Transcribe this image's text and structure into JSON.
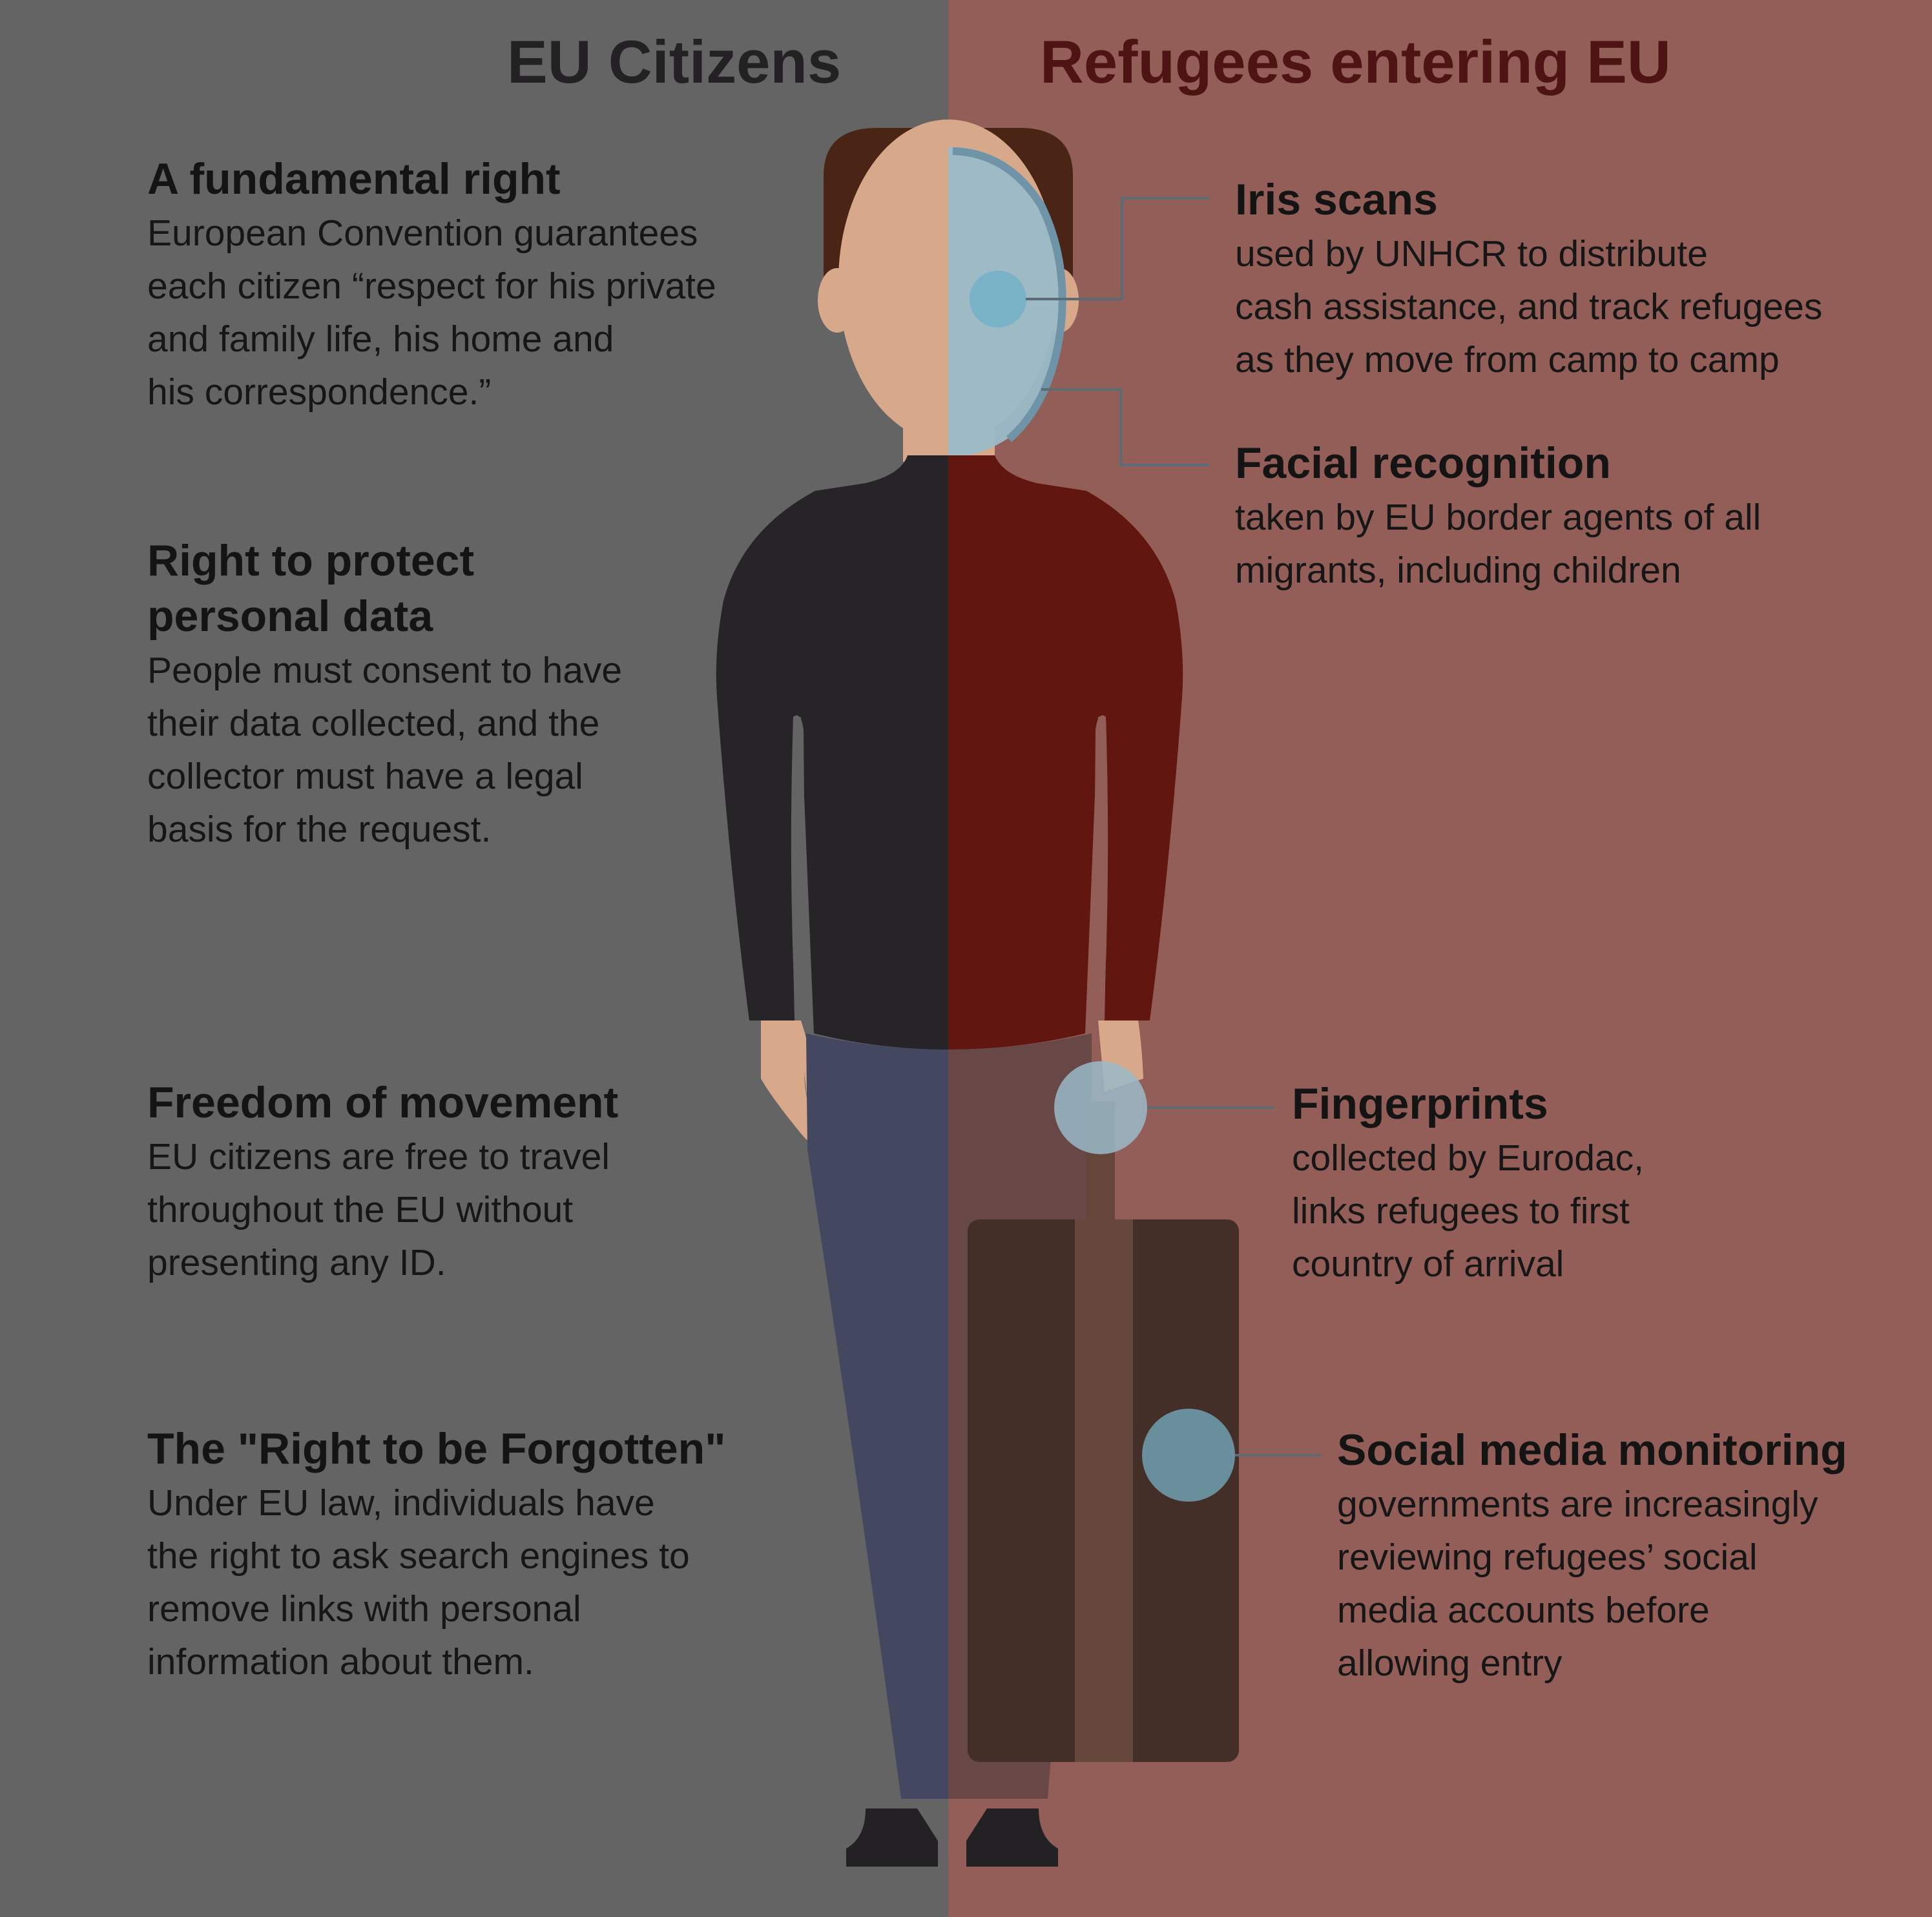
{
  "colors": {
    "left_bg": "#656465",
    "right_bg": "#925e57",
    "left_header": "#232123",
    "right_header": "#4e1413",
    "hair": "#4a2516",
    "skin": "#d7a98a",
    "scan_overlay": "#9abac8",
    "scan_dot": "#7ab2c8",
    "sweater_left": "#262426",
    "sweater_right": "#611610",
    "pants_left": "#444760",
    "pants_right": "#684846",
    "suitcase": "#432f27",
    "suitcase_strap": "#65463a",
    "shoes": "#232123",
    "leader_line": "#5b6c76"
  },
  "header": {
    "left_title": "EU Citizens",
    "right_title": "Refugees entering EU"
  },
  "left": {
    "items": [
      {
        "title": "A fundamental right",
        "body": "European Convention guarantees\neach citizen “respect for his private\nand family life, his home and\nhis correspondence.”"
      },
      {
        "title": "Right to protect\npersonal data",
        "body": "People must consent to have\ntheir data collected, and the\ncollector must have a legal\nbasis for the request."
      },
      {
        "title": "Freedom of movement",
        "body": "EU citizens are free to travel\nthroughout the EU without\npresenting any ID."
      },
      {
        "title": "The \"Right to be Forgotten\"",
        "body": "Under EU law, individuals have\nthe right to ask search engines to\nremove links with personal\ninformation about them."
      }
    ]
  },
  "right": {
    "items": [
      {
        "title": "Iris scans",
        "body": "used by UNHCR to distribute\ncash assistance, and track refugees\nas they move from camp to camp"
      },
      {
        "title": "Facial recognition",
        "body": "taken by EU border agents of all\nmigrants, including children"
      },
      {
        "title": "Fingerprints",
        "body": "collected by Eurodac,\nlinks refugees to first\ncountry of arrival"
      },
      {
        "title": "Social media monitoring",
        "body": "governments are increasingly\nreviewing refugees’ social\nmedia accounts before\nallowing entry"
      }
    ]
  }
}
